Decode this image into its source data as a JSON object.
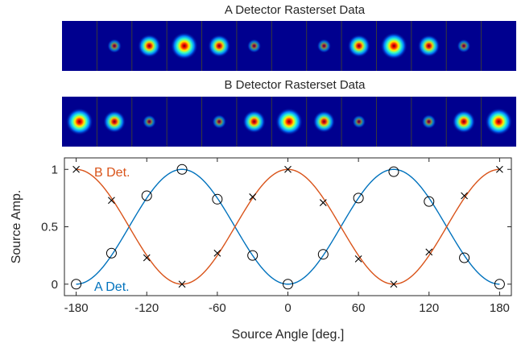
{
  "raster_titles": {
    "a": "A Detector Rasterset Data",
    "b": "B Detector Rasterset Data"
  },
  "raster_rows": {
    "a": [
      0.0,
      0.27,
      0.77,
      1.0,
      0.74,
      0.25,
      0.0,
      0.26,
      0.75,
      0.98,
      0.72,
      0.23,
      0.0
    ],
    "b": [
      1.0,
      0.73,
      0.23,
      0.0,
      0.27,
      0.76,
      1.0,
      0.71,
      0.22,
      0.0,
      0.28,
      0.77,
      1.0
    ]
  },
  "chart_data": {
    "type": "line",
    "xlabel": "Source Angle [deg.]",
    "ylabel": "Source Amp.",
    "xlim": [
      -190,
      190
    ],
    "ylim": [
      -0.1,
      1.1
    ],
    "xticks": [
      -180,
      -120,
      -60,
      0,
      60,
      120,
      180
    ],
    "yticks": [
      0,
      0.5,
      1
    ],
    "series": [
      {
        "name": "A Det.",
        "color": "#0072BD",
        "marker": "circle",
        "curve": "cos2(x/2)",
        "x": [
          -180,
          -150,
          -120,
          -90,
          -60,
          -30,
          0,
          30,
          60,
          90,
          120,
          150,
          180
        ],
        "values": [
          0.0,
          0.27,
          0.77,
          1.0,
          0.74,
          0.25,
          0.0,
          0.26,
          0.75,
          0.98,
          0.72,
          0.23,
          0.0
        ]
      },
      {
        "name": "B Det.",
        "color": "#D95319",
        "marker": "cross",
        "curve": "sin2(x/2)",
        "x": [
          -180,
          -150,
          -120,
          -90,
          -60,
          -30,
          0,
          30,
          60,
          90,
          120,
          150,
          180
        ],
        "values": [
          1.0,
          0.73,
          0.23,
          0.0,
          0.27,
          0.76,
          1.0,
          0.71,
          0.22,
          0.0,
          0.28,
          0.77,
          1.0
        ]
      }
    ]
  }
}
